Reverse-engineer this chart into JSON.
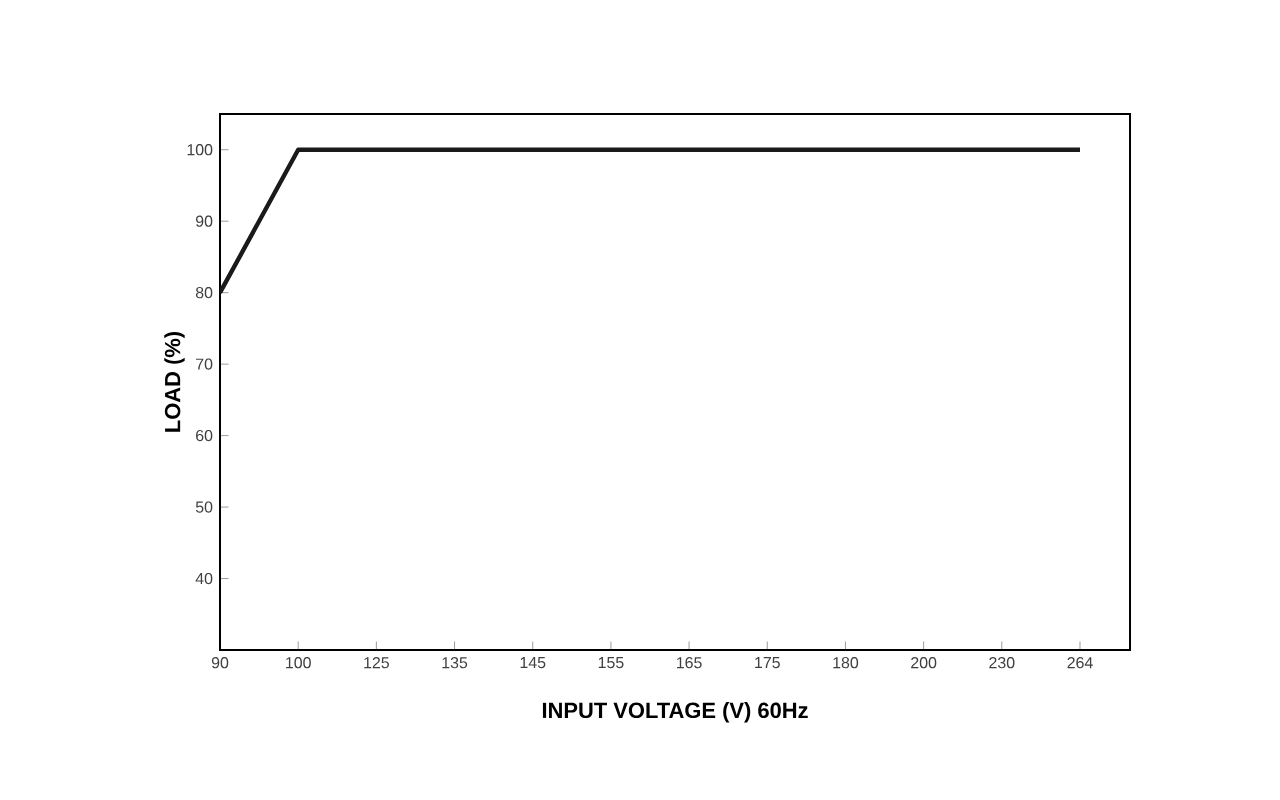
{
  "chart_data": {
    "type": "line",
    "xlabel": "INPUT VOLTAGE (V) 60Hz",
    "ylabel": "LOAD (%)",
    "categories": [
      "90",
      "100",
      "125",
      "135",
      "145",
      "155",
      "165",
      "175",
      "180",
      "200",
      "230",
      "264"
    ],
    "series": [
      {
        "color": "#1a1a1a",
        "values": [
          80,
          100,
          100,
          100,
          100,
          100,
          100,
          100,
          100,
          100,
          100,
          100
        ]
      }
    ],
    "ylim": [
      30,
      105
    ],
    "yticks": [
      40,
      50,
      60,
      70,
      80,
      90,
      100
    ],
    "grid": false,
    "marker": "none",
    "line_style": "solid"
  }
}
